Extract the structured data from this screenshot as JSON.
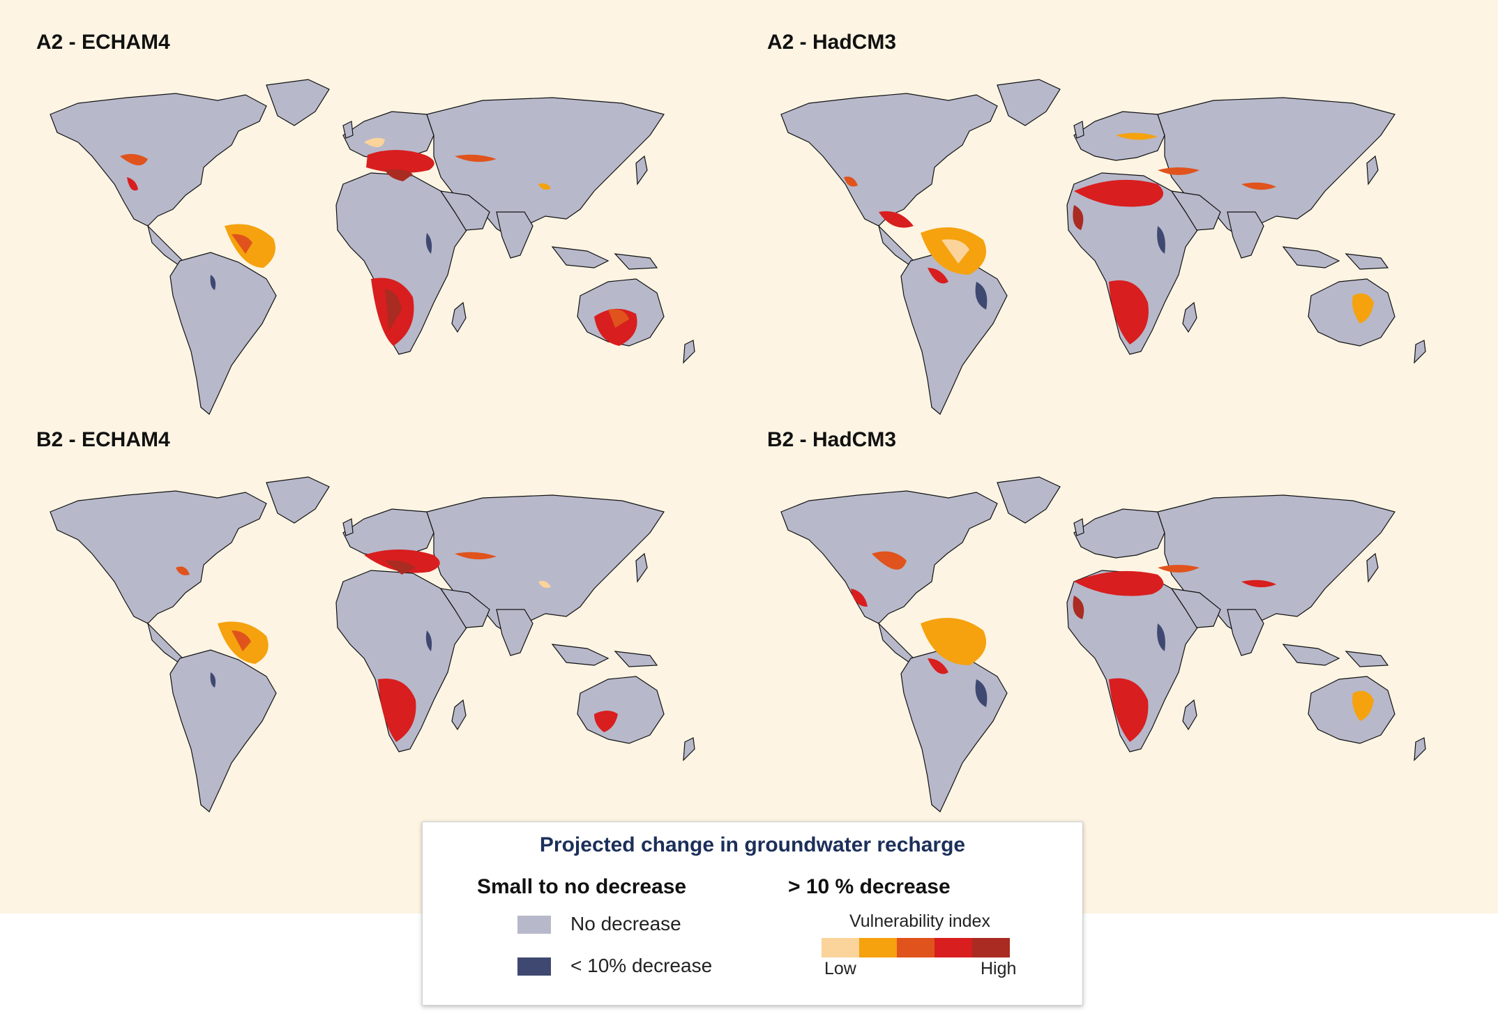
{
  "panels": [
    {
      "title": "A2 - ECHAM4"
    },
    {
      "title": "A2 - HadCM3"
    },
    {
      "title": "B2 - ECHAM4"
    },
    {
      "title": "B2 - HadCM3"
    }
  ],
  "legend": {
    "title": "Projected change in groundwater recharge",
    "small_head": "Small to no decrease",
    "large_head": "> 10 % decrease",
    "no_decrease_label": "No decrease",
    "lt10_label": "< 10% decrease",
    "vulnerability_title": "Vulnerability index",
    "low_label": "Low",
    "high_label": "High"
  },
  "colors": {
    "background": "#fdf4e3",
    "no_decrease": "#b7b8ca",
    "lt10_decrease": "#3e4870",
    "vulnerability": [
      "#fbd49b",
      "#f5a20e",
      "#e0531c",
      "#d81e1e",
      "#a92b22"
    ]
  }
}
